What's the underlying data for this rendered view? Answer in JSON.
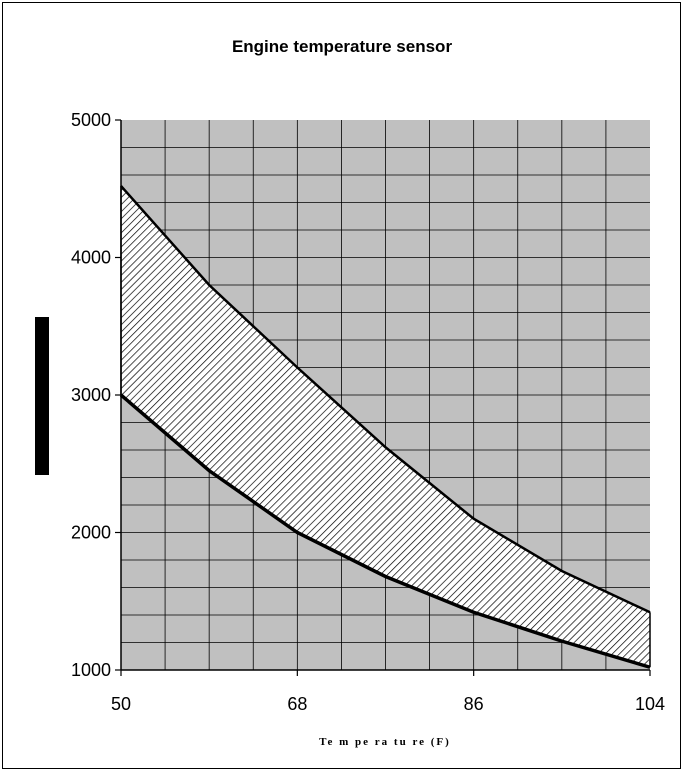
{
  "chart_data": {
    "type": "area",
    "title": "Engine temperature sensor",
    "xlabel": "Te m pe ra tu re  (F)",
    "ylabel": "",
    "x_ticks": [
      50,
      68,
      86,
      104
    ],
    "y_ticks": [
      1000,
      2000,
      3000,
      4000,
      5000
    ],
    "xlim": [
      50,
      104
    ],
    "ylim": [
      1000,
      5000
    ],
    "x_grid_step": 4.5,
    "y_grid_step": 200,
    "grid": true,
    "plot_background": "#c0c0c0",
    "series": [
      {
        "role": "upper",
        "x": [
          50,
          59,
          68,
          77,
          86,
          95,
          104
        ],
        "y": [
          4520,
          3800,
          3200,
          2620,
          2100,
          1720,
          1420
        ]
      },
      {
        "role": "lower",
        "x": [
          50,
          59,
          68,
          77,
          86,
          95,
          104
        ],
        "y": [
          3000,
          2450,
          2000,
          1680,
          1420,
          1210,
          1020
        ]
      }
    ],
    "band_fill": "hatched"
  }
}
